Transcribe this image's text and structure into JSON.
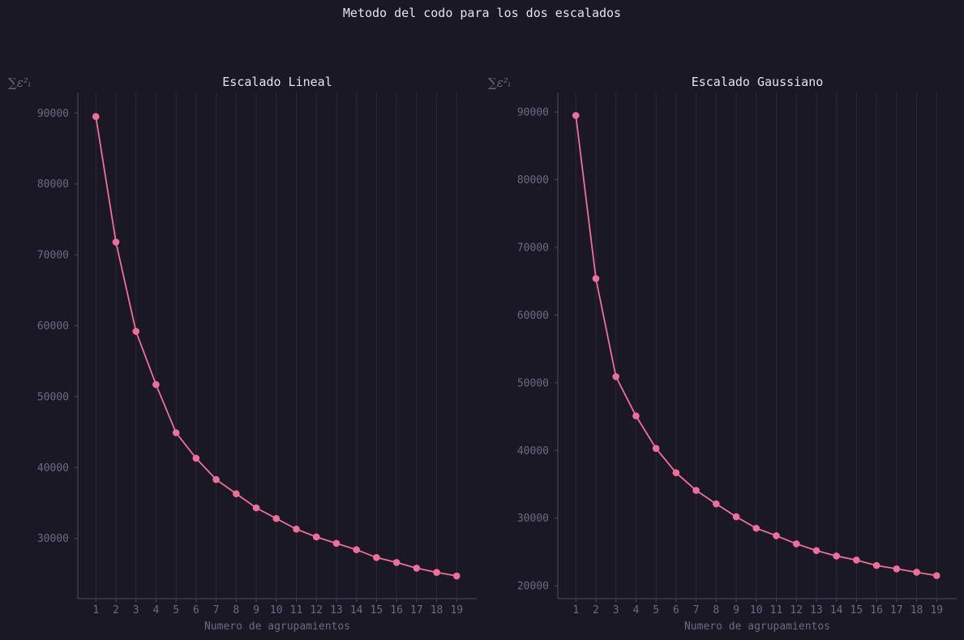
{
  "figure": {
    "title": "Metodo del codo para los dos escalados"
  },
  "colors": {
    "background": "#1b1825",
    "series": "#f06e9b"
  },
  "chart_data": [
    {
      "type": "line",
      "title": "Escalado Lineal",
      "xlabel": "Numero de agrupamientos",
      "ylabel": "∑ε²ᵢ",
      "x": [
        1,
        2,
        3,
        4,
        5,
        6,
        7,
        8,
        9,
        10,
        11,
        12,
        13,
        14,
        15,
        16,
        17,
        18,
        19
      ],
      "series": [
        {
          "values": [
            89500,
            71800,
            59200,
            51700,
            44900,
            41300,
            38300,
            36300,
            34300,
            32800,
            31300,
            30200,
            29300,
            28400,
            27300,
            26600,
            25800,
            25200,
            24700
          ]
        }
      ],
      "xticks": [
        1,
        2,
        3,
        4,
        5,
        6,
        7,
        8,
        9,
        10,
        11,
        12,
        13,
        14,
        15,
        16,
        17,
        18,
        19
      ],
      "yticks": [
        30000,
        40000,
        50000,
        60000,
        70000,
        80000,
        90000
      ],
      "xlim": [
        0.1,
        20.0
      ],
      "ylim": [
        21500,
        92900
      ],
      "grid": "vertical",
      "markers": true
    },
    {
      "type": "line",
      "title": "Escalado Gaussiano",
      "xlabel": "Numero de agrupamientos",
      "ylabel": "∑ε²ᵢ",
      "x": [
        1,
        2,
        3,
        4,
        5,
        6,
        7,
        8,
        9,
        10,
        11,
        12,
        13,
        14,
        15,
        16,
        17,
        18,
        19
      ],
      "series": [
        {
          "values": [
            89500,
            65400,
            50900,
            45100,
            40300,
            36700,
            34100,
            32100,
            30200,
            28500,
            27400,
            26200,
            25200,
            24400,
            23800,
            23000,
            22500,
            22000,
            21500
          ]
        }
      ],
      "xticks": [
        1,
        2,
        3,
        4,
        5,
        6,
        7,
        8,
        9,
        10,
        11,
        12,
        13,
        14,
        15,
        16,
        17,
        18,
        19
      ],
      "yticks": [
        20000,
        30000,
        40000,
        50000,
        60000,
        70000,
        80000,
        90000
      ],
      "xlim": [
        0.1,
        20.0
      ],
      "ylim": [
        18100,
        92900
      ],
      "grid": "vertical",
      "markers": true
    }
  ]
}
